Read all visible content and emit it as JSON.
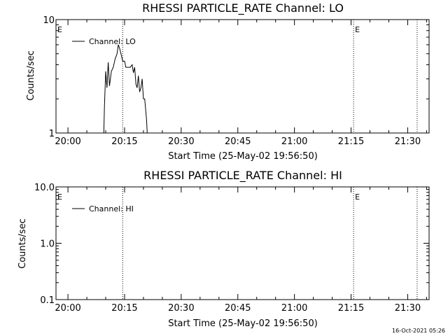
{
  "chart_data": [
    {
      "type": "line",
      "title": "RHESSI PARTICLE_RATE Channel: LO",
      "xlabel": "Start Time (25-May-02 19:56:50)",
      "ylabel": "Counts/sec",
      "yscale": "log",
      "ylim": [
        1,
        10
      ],
      "ytick_labels": [
        "1",
        "10"
      ],
      "xtick_labels": [
        "20:00",
        "20:15",
        "20:30",
        "20:45",
        "21:00",
        "21:15",
        "21:30"
      ],
      "legend": "Channel: LO",
      "legend_position": "top-left",
      "event_markers": [
        {
          "time": "19:56:50",
          "label": "E"
        },
        {
          "time": "20:14:30",
          "label": ""
        },
        {
          "time": "21:15:40",
          "label": "E"
        },
        {
          "time": "21:32:30",
          "label": ""
        }
      ],
      "series": [
        {
          "x": [
            "20:09:30",
            "20:09:40",
            "20:10:00",
            "20:10:20",
            "20:10:40",
            "20:11:00",
            "20:11:30",
            "20:12:00",
            "20:12:30",
            "20:13:00",
            "20:13:20",
            "20:13:40",
            "20:14:10",
            "20:14:30",
            "20:15:00",
            "20:15:20",
            "20:15:40",
            "20:16:00",
            "20:16:30",
            "20:17:00",
            "20:17:20",
            "20:17:40",
            "20:18:00",
            "20:18:20",
            "20:18:40",
            "20:19:00",
            "20:19:20",
            "20:19:40",
            "20:20:00",
            "20:20:20",
            "20:20:40",
            "20:20:50",
            "20:21:00"
          ],
          "y": [
            1.0,
            1.7,
            3.5,
            2.5,
            4.2,
            2.6,
            3.5,
            3.8,
            4.5,
            5.0,
            6.0,
            5.6,
            4.8,
            4.3,
            4.3,
            3.8,
            3.8,
            3.8,
            3.8,
            4.0,
            3.4,
            3.8,
            2.7,
            2.5,
            3.2,
            2.3,
            2.5,
            3.0,
            2.0,
            2.0,
            1.5,
            1.3,
            1.0
          ]
        }
      ]
    },
    {
      "type": "line",
      "title": "RHESSI PARTICLE_RATE Channel: HI",
      "xlabel": "Start Time (25-May-02 19:56:50)",
      "ylabel": "Counts/sec",
      "yscale": "log",
      "ylim": [
        0.1,
        10
      ],
      "ytick_labels": [
        "0.1",
        "1.0",
        "10.0"
      ],
      "xtick_labels": [
        "20:00",
        "20:15",
        "20:30",
        "20:45",
        "21:00",
        "21:15",
        "21:30"
      ],
      "legend": "Channel: HI",
      "legend_position": "top-left",
      "event_markers": [
        {
          "time": "19:56:50",
          "label": "E"
        },
        {
          "time": "20:14:30",
          "label": ""
        },
        {
          "time": "21:15:40",
          "label": "E"
        },
        {
          "time": "21:32:30",
          "label": ""
        }
      ],
      "series": [
        {
          "x": [],
          "y": []
        }
      ]
    }
  ],
  "footer_timestamp": "16-Oct-2021 05:26"
}
